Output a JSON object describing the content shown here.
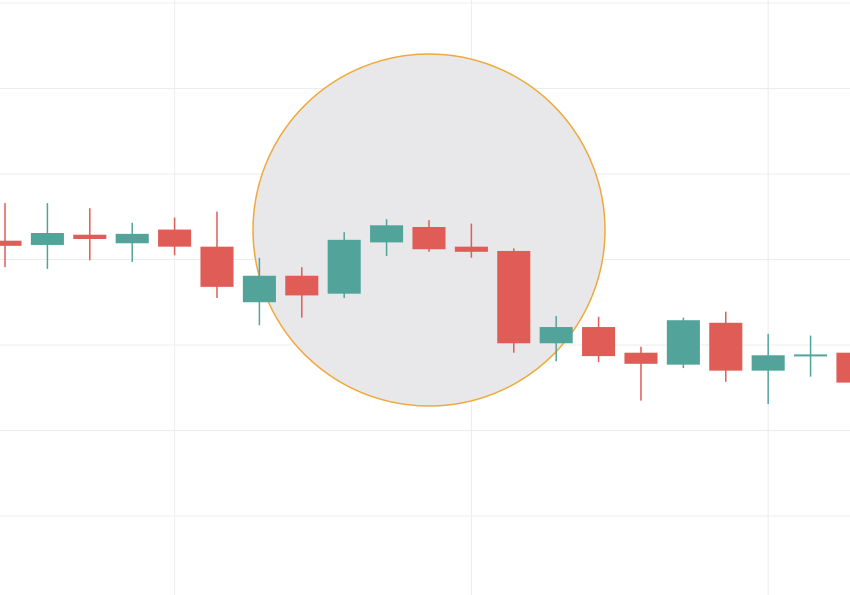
{
  "chart_data": {
    "type": "candlestick",
    "x": [
      0,
      1,
      2,
      3,
      4,
      5,
      6,
      7,
      8,
      9,
      10,
      11,
      12,
      13,
      14,
      15,
      16,
      17,
      18,
      19,
      20
    ],
    "open": [
      4.22,
      4.17,
      4.29,
      4.19,
      4.35,
      4.15,
      3.5,
      3.81,
      3.6,
      4.2,
      4.38,
      4.15,
      4.1,
      3.02,
      3.21,
      2.91,
      2.77,
      3.26,
      2.7,
      2.87,
      2.91
    ],
    "high": [
      4.66,
      4.66,
      4.6,
      4.43,
      4.49,
      4.56,
      4.02,
      3.91,
      4.32,
      4.47,
      4.46,
      4.42,
      4.13,
      3.34,
      3.33,
      2.98,
      3.32,
      3.39,
      3.13,
      3.11,
      2.91
    ],
    "low": [
      3.91,
      3.89,
      3.99,
      3.97,
      4.05,
      3.55,
      3.23,
      3.32,
      3.55,
      4.04,
      4.09,
      4.02,
      2.91,
      2.81,
      2.8,
      2.35,
      2.73,
      2.57,
      2.31,
      2.63,
      2.56
    ],
    "close": [
      4.16,
      4.31,
      4.24,
      4.3,
      4.15,
      3.68,
      3.81,
      3.58,
      4.23,
      4.4,
      4.12,
      4.09,
      3.02,
      3.21,
      2.87,
      2.78,
      3.29,
      2.7,
      2.88,
      2.89,
      2.56
    ],
    "up_color": "#52a49a",
    "down_color": "#e05c56",
    "xlim": [
      -0.118,
      19.93
    ],
    "xticks": [
      4,
      11,
      18
    ],
    "ylim": [
      1,
      7
    ],
    "yticks": [
      1,
      2,
      3,
      4,
      5,
      6,
      7
    ],
    "grid": true
  }
}
